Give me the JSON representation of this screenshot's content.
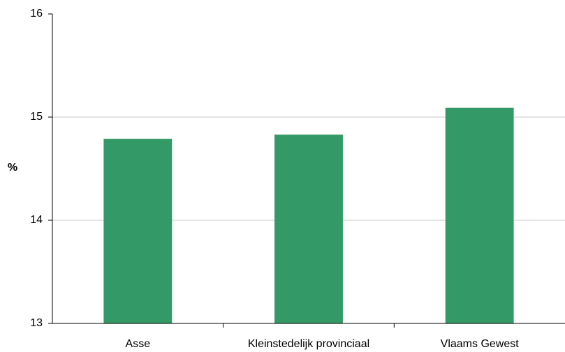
{
  "chart_data": {
    "type": "bar",
    "y_label": "%",
    "categories": [
      "Asse",
      "Kleinstedelijk provinciaal",
      "Vlaams Gewest"
    ],
    "values": [
      14.79,
      14.83,
      15.09
    ],
    "color": "#339966",
    "ylim": [
      13,
      16
    ],
    "yticks": [
      13,
      14,
      15,
      16
    ],
    "grid": true
  }
}
